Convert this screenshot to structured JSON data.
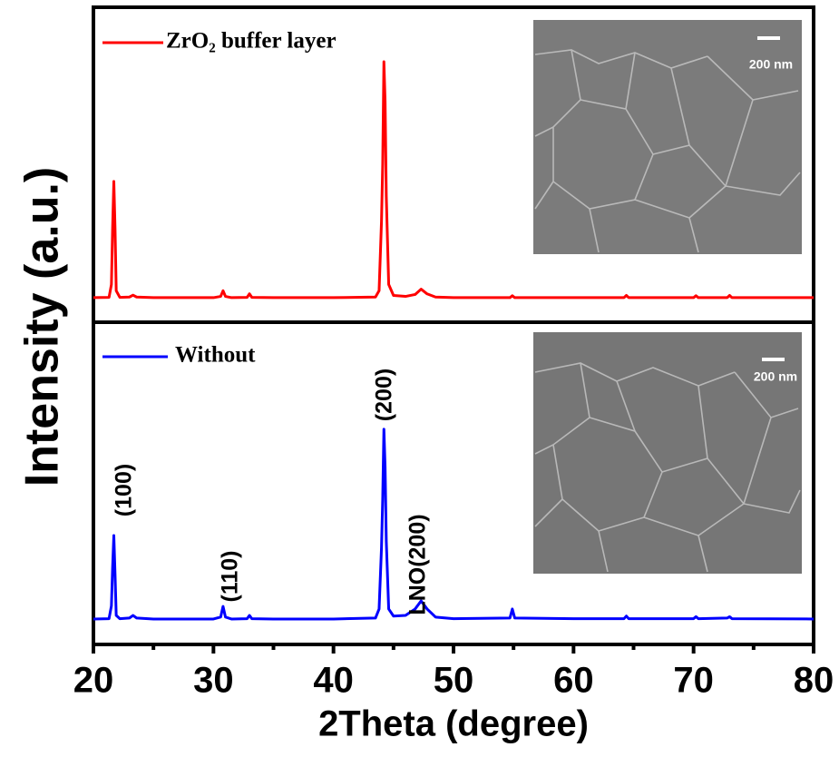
{
  "chart_data": [
    {
      "type": "line",
      "ylabel": "Intensity (a.u.)",
      "xlim": [
        20,
        80
      ],
      "ylim": [
        0,
        100
      ],
      "inset_label": "200 nm",
      "x": [
        20,
        21.3,
        21.5,
        21.6,
        21.7,
        21.8,
        21.9,
        22.2,
        23,
        23.3,
        23.6,
        25,
        30,
        30.6,
        30.8,
        31.0,
        31.5,
        32.8,
        33.0,
        33.2,
        35,
        40,
        43.5,
        43.8,
        44.0,
        44.1,
        44.2,
        44.3,
        44.4,
        44.6,
        45,
        46,
        46.8,
        47.3,
        47.8,
        48.5,
        50,
        54.7,
        54.9,
        55.1,
        60,
        64.2,
        64.4,
        64.6,
        70,
        70.2,
        70.4,
        72.8,
        73,
        73.2,
        80
      ],
      "series": [
        {
          "name": "ZrO₂ buffer layer",
          "color": "#ff0000",
          "values": [
            7.8,
            7.9,
            12,
            30,
            44.7,
            30,
            10,
            7.9,
            8.0,
            8.6,
            8.0,
            7.8,
            7.8,
            8.2,
            10.0,
            8.2,
            7.8,
            7.9,
            9.0,
            7.9,
            7.8,
            7.8,
            8.0,
            10,
            32,
            50,
            82.7,
            70,
            40,
            12,
            8.5,
            8.2,
            8.8,
            10.5,
            9.0,
            8.0,
            7.8,
            7.8,
            8.4,
            7.8,
            7.8,
            7.8,
            8.5,
            7.8,
            7.8,
            8.4,
            7.8,
            7.8,
            8.5,
            7.8,
            7.8
          ]
        }
      ]
    },
    {
      "type": "line",
      "xlabel": "2Theta (degree)",
      "xlim": [
        20,
        80
      ],
      "ylim": [
        0,
        100
      ],
      "inset_label": "200 nm",
      "xticks": [
        20,
        30,
        40,
        50,
        60,
        70,
        80
      ],
      "xminorticks": [
        25,
        35,
        45,
        55,
        65,
        75
      ],
      "annotations": [
        "(100)",
        "(110)",
        "(200)",
        "LNO(200)"
      ],
      "x": [
        20,
        21.3,
        21.5,
        21.6,
        21.7,
        21.8,
        21.9,
        22.2,
        23,
        23.3,
        23.6,
        25,
        30,
        30.6,
        30.8,
        31.0,
        31.5,
        32.8,
        33.0,
        33.2,
        35,
        40,
        43.5,
        43.8,
        44.0,
        44.1,
        44.2,
        44.3,
        44.4,
        44.6,
        45,
        46,
        46.8,
        47.3,
        47.8,
        48.5,
        50,
        54.7,
        54.9,
        55.1,
        60,
        64.2,
        64.4,
        64.6,
        70,
        70.2,
        70.4,
        72.8,
        73,
        73.2,
        80
      ],
      "series": [
        {
          "name": "Without",
          "color": "#0000ff",
          "values": [
            7.9,
            8.0,
            12,
            24,
            33.8,
            22,
            9,
            8.0,
            8.2,
            9.0,
            8.2,
            7.9,
            7.9,
            8.5,
            11.8,
            8.5,
            7.9,
            8.0,
            9.0,
            8.0,
            7.9,
            7.9,
            8.2,
            11,
            30,
            45,
            66.8,
            55,
            32,
            11,
            8.8,
            9.0,
            11,
            13.5,
            11,
            8.5,
            8.0,
            8.2,
            11,
            8.2,
            8.0,
            8.0,
            8.8,
            8.0,
            8.0,
            8.6,
            8.0,
            8.2,
            8.6,
            8.0,
            7.9
          ]
        }
      ]
    }
  ]
}
